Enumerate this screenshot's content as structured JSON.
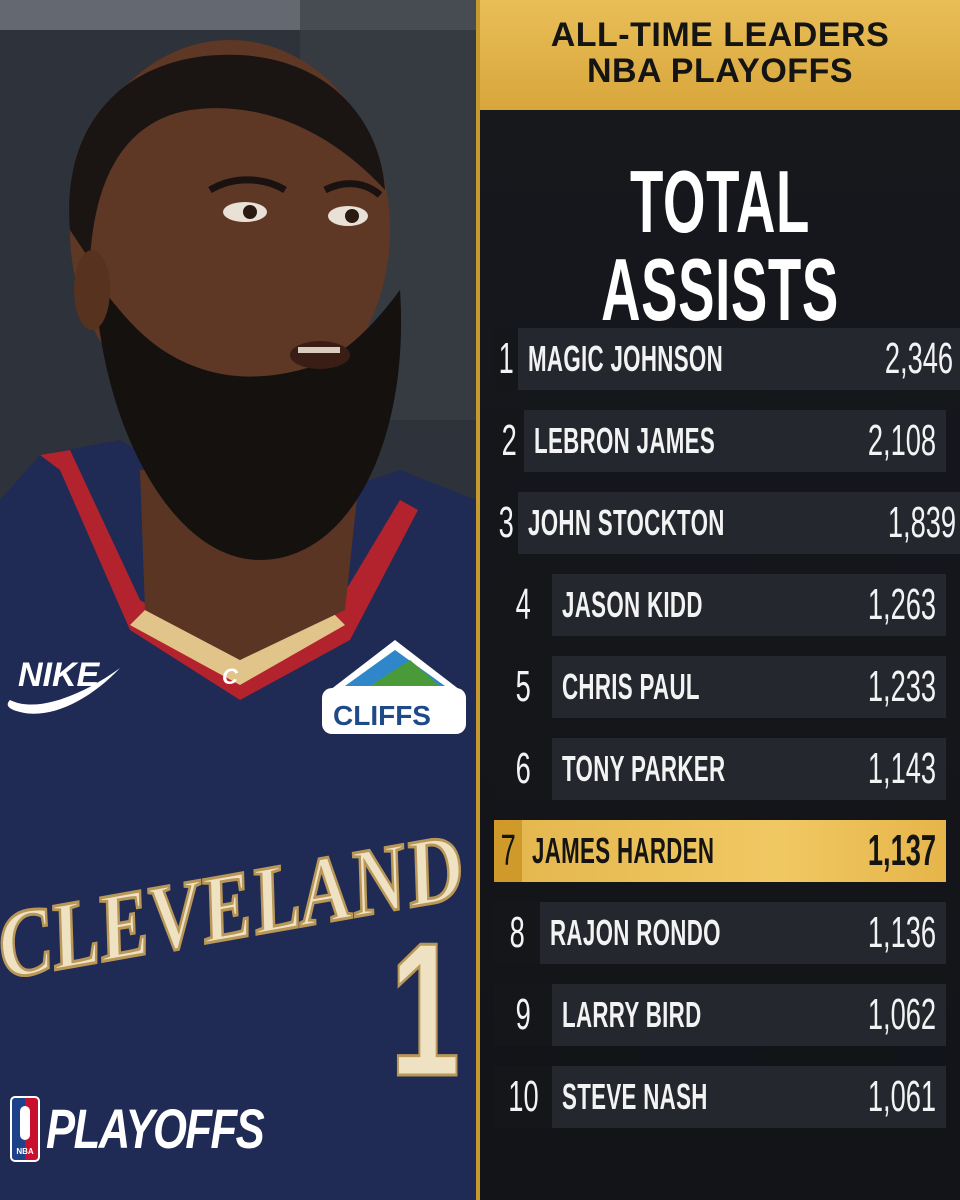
{
  "header": {
    "line1": "ALL-TIME LEADERS",
    "line2": "NBA PLAYOFFS"
  },
  "stat_title": "TOTAL ASSISTS",
  "leaders": [
    {
      "rank": "1",
      "name": "MAGIC JOHNSON",
      "value": "2,346"
    },
    {
      "rank": "2",
      "name": "LEBRON JAMES",
      "value": "2,108"
    },
    {
      "rank": "3",
      "name": "JOHN STOCKTON",
      "value": "1,839"
    },
    {
      "rank": "4",
      "name": "JASON KIDD",
      "value": "1,263"
    },
    {
      "rank": "5",
      "name": "CHRIS PAUL",
      "value": "1,233"
    },
    {
      "rank": "6",
      "name": "TONY PARKER",
      "value": "1,143"
    },
    {
      "rank": "7",
      "name": "JAMES HARDEN",
      "value": "1,137",
      "highlighted": true
    },
    {
      "rank": "8",
      "name": "RAJON RONDO",
      "value": "1,136"
    },
    {
      "rank": "9",
      "name": "LARRY BIRD",
      "value": "1,062"
    },
    {
      "rank": "10",
      "name": "STEVE NASH",
      "value": "1,061"
    }
  ],
  "jersey": {
    "team_wordmark": "CLEVELAND",
    "number": "1",
    "brand": "NIKE",
    "sponsor": "CLIFFS",
    "collar_letter": "C"
  },
  "logo": {
    "nba": "NBA",
    "word": "PLAYOFFS"
  },
  "colors": {
    "gold": "#e5b84f",
    "panel_dark": "#16181d",
    "row_dark": "#24272d",
    "jersey_navy": "#1f2a55",
    "jersey_red": "#b3232e"
  }
}
